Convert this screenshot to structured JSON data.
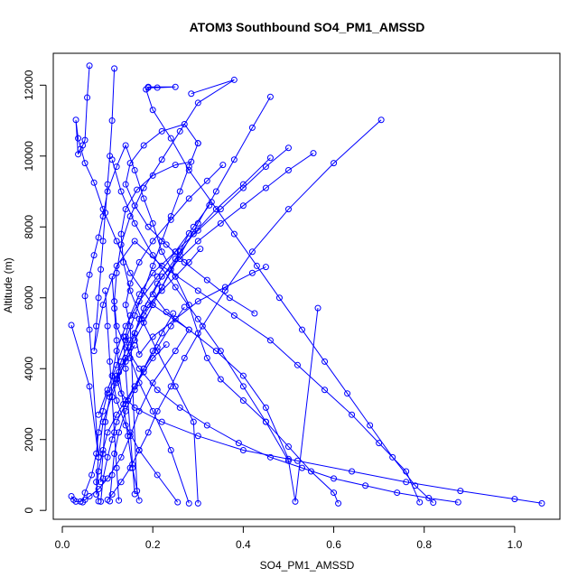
{
  "chart_data": {
    "type": "line",
    "title": "ATOM3 Southbound SO4_PM1_AMSSD",
    "xlabel": "SO4_PM1_AMSSD",
    "ylabel": "Altitude (m)",
    "xlim": [
      -0.02,
      1.1
    ],
    "ylim": [
      -250,
      12900
    ],
    "x_ticks": [
      "0.0",
      "0.2",
      "0.4",
      "0.6",
      "0.8",
      "1.0"
    ],
    "x_tick_values": [
      0.0,
      0.2,
      0.4,
      0.6,
      0.8,
      1.0
    ],
    "y_ticks": [
      "0",
      "2000",
      "4000",
      "6000",
      "8000",
      "10000",
      "12000"
    ],
    "y_tick_values": [
      0,
      2000,
      4000,
      6000,
      8000,
      10000,
      12000
    ],
    "grid": false,
    "color": "#0000ff",
    "series": [
      {
        "x": [
          0.06,
          0.055,
          0.05,
          0.045,
          0.04,
          0.035,
          0.03,
          0.035,
          0.05,
          0.07,
          0.09,
          0.12,
          0.15,
          0.2,
          0.28,
          0.25,
          0.2,
          0.17,
          0.15,
          0.13,
          0.1,
          0.08,
          0.06,
          0.05,
          0.04,
          0.03,
          0.025,
          0.02
        ],
        "y": [
          12550,
          11650,
          10450,
          10300,
          10200,
          10050,
          11020,
          10500,
          9800,
          9250,
          8500,
          7600,
          6700,
          5800,
          5100,
          4500,
          3600,
          2800,
          2100,
          1500,
          900,
          600,
          400,
          300,
          250,
          250,
          300,
          400
        ]
      },
      {
        "x": [
          0.02,
          0.06,
          0.08,
          0.06,
          0.05,
          0.06,
          0.07,
          0.08,
          0.09,
          0.1,
          0.12,
          0.14,
          0.16,
          0.18,
          0.2,
          0.22,
          0.25,
          0.28,
          0.3,
          0.32,
          0.35,
          0.4,
          0.45,
          0.5,
          0.55,
          0.6,
          0.61
        ],
        "y": [
          5230,
          3500,
          1500,
          5100,
          6050,
          6650,
          7200,
          7700,
          8300,
          9000,
          9700,
          10300,
          9600,
          8800,
          8100,
          7300,
          6600,
          5800,
          5000,
          4300,
          3700,
          3100,
          2500,
          1800,
          1100,
          500,
          200
        ]
      },
      {
        "x": [
          0.115,
          0.11,
          0.105,
          0.1,
          0.095,
          0.09,
          0.085,
          0.08,
          0.075,
          0.07,
          0.09,
          0.12,
          0.16,
          0.22,
          0.3,
          0.38,
          0.46,
          0.52,
          0.58,
          0.64,
          0.7,
          0.76,
          0.79
        ],
        "y": [
          12470,
          11000,
          10000,
          9200,
          8400,
          7600,
          6800,
          6000,
          5200,
          4500,
          5800,
          6900,
          7600,
          6900,
          6200,
          5500,
          4800,
          4100,
          3400,
          2700,
          1900,
          1100,
          230
        ]
      },
      {
        "x": [
          0.19,
          0.25,
          0.21,
          0.19,
          0.185,
          0.2,
          0.24,
          0.28,
          0.33,
          0.38,
          0.43,
          0.48,
          0.53,
          0.58,
          0.63,
          0.68,
          0.73,
          0.78,
          0.82
        ],
        "y": [
          11950,
          11950,
          11930,
          11930,
          11880,
          11300,
          10500,
          9600,
          8700,
          7800,
          6900,
          6000,
          5100,
          4200,
          3300,
          2400,
          1500,
          700,
          220
        ]
      },
      {
        "x": [
          0.285,
          0.38,
          0.3,
          0.26,
          0.22,
          0.18,
          0.15,
          0.13,
          0.12,
          0.115,
          0.12,
          0.14,
          0.17,
          0.21,
          0.26,
          0.32,
          0.39,
          0.46,
          0.53,
          0.6,
          0.67,
          0.74,
          0.81,
          0.875
        ],
        "y": [
          11760,
          12150,
          11500,
          10700,
          9900,
          9100,
          8300,
          7500,
          6700,
          5900,
          5200,
          4600,
          4000,
          3400,
          2900,
          2400,
          1900,
          1500,
          1200,
          900,
          700,
          500,
          350,
          230
        ]
      },
      {
        "x": [
          0.46,
          0.42,
          0.38,
          0.34,
          0.3,
          0.26,
          0.22,
          0.18,
          0.15,
          0.13,
          0.12,
          0.13,
          0.16,
          0.22,
          0.3,
          0.4,
          0.52,
          0.64,
          0.76,
          0.88,
          1.0,
          1.06
        ],
        "y": [
          11670,
          10800,
          9900,
          9000,
          8100,
          7200,
          6300,
          5500,
          4800,
          4200,
          3700,
          3300,
          2900,
          2500,
          2100,
          1700,
          1400,
          1100,
          800,
          550,
          320,
          200
        ]
      },
      {
        "x": [
          0.705,
          0.6,
          0.5,
          0.42,
          0.36,
          0.31,
          0.27,
          0.24,
          0.21,
          0.19,
          0.17,
          0.15,
          0.13,
          0.11,
          0.1
        ],
        "y": [
          11020,
          9800,
          8500,
          7300,
          6200,
          5200,
          4300,
          3500,
          2800,
          2200,
          1700,
          1200,
          800,
          450,
          300
        ]
      },
      {
        "x": [
          0.555,
          0.5,
          0.45,
          0.4,
          0.35,
          0.3,
          0.26,
          0.22,
          0.2,
          0.23,
          0.28,
          0.34,
          0.4,
          0.45,
          0.5
        ],
        "y": [
          10080,
          9600,
          9100,
          8600,
          8100,
          7600,
          7100,
          6600,
          6100,
          5600,
          5100,
          4500,
          3800,
          2900,
          1450
        ]
      },
      {
        "x": [
          0.5,
          0.45,
          0.4,
          0.35,
          0.3,
          0.25,
          0.2,
          0.17,
          0.15,
          0.14,
          0.15,
          0.17,
          0.2,
          0.24,
          0.28
        ],
        "y": [
          10230,
          9700,
          9100,
          8500,
          7900,
          7300,
          6700,
          6100,
          5500,
          4900,
          4300,
          3600,
          2800,
          1700,
          200
        ]
      },
      {
        "x": [
          0.46,
          0.4,
          0.34,
          0.29,
          0.25,
          0.21,
          0.18,
          0.16,
          0.17,
          0.2,
          0.25,
          0.3,
          0.36,
          0.42,
          0.45
        ],
        "y": [
          9950,
          9200,
          8500,
          7800,
          7100,
          6400,
          5700,
          5000,
          4400,
          4900,
          5400,
          5900,
          6300,
          6700,
          6870
        ]
      },
      {
        "x": [
          0.565,
          0.515,
          0.5,
          0.45,
          0.4,
          0.35,
          0.3,
          0.25,
          0.2,
          0.16,
          0.13,
          0.11
        ],
        "y": [
          5710,
          250,
          1400,
          2500,
          3500,
          4500,
          5400,
          6300,
          7200,
          8100,
          9000,
          9900
        ]
      },
      {
        "x": [
          0.425,
          0.37,
          0.32,
          0.27,
          0.23,
          0.19,
          0.16,
          0.14,
          0.15,
          0.18,
          0.22,
          0.27,
          0.3
        ],
        "y": [
          5560,
          6000,
          6500,
          7000,
          7500,
          8000,
          8600,
          9200,
          9800,
          10300,
          10700,
          10900,
          10360
        ]
      },
      {
        "x": [
          0.3,
          0.28,
          0.26,
          0.24,
          0.22,
          0.2,
          0.18,
          0.16,
          0.14,
          0.12,
          0.1,
          0.08
        ],
        "y": [
          10360,
          9700,
          9000,
          8300,
          7600,
          6900,
          6200,
          5500,
          4800,
          4100,
          3400,
          2700
        ]
      },
      {
        "x": [
          0.285,
          0.25,
          0.2,
          0.165,
          0.14,
          0.13,
          0.135,
          0.15,
          0.175,
          0.21,
          0.25,
          0.29,
          0.3
        ],
        "y": [
          9840,
          9750,
          9450,
          9050,
          8500,
          7800,
          7000,
          6200,
          5400,
          4500,
          3500,
          2500,
          200
        ]
      },
      {
        "x": [
          0.325,
          0.29,
          0.25,
          0.21,
          0.17,
          0.14,
          0.12,
          0.11,
          0.12,
          0.14,
          0.17,
          0.21,
          0.255
        ],
        "y": [
          8610,
          8000,
          7300,
          6600,
          5900,
          5200,
          4500,
          3800,
          3100,
          2400,
          1700,
          1000,
          230
        ]
      },
      {
        "x": [
          0.355,
          0.32,
          0.28,
          0.24,
          0.2,
          0.17,
          0.15,
          0.14,
          0.15,
          0.165
        ],
        "y": [
          9750,
          9300,
          8800,
          8200,
          7600,
          7000,
          6400,
          5800,
          5200,
          550
        ]
      },
      {
        "x": [
          0.305,
          0.28,
          0.25,
          0.22,
          0.19,
          0.17,
          0.16,
          0.15,
          0.12,
          0.09,
          0.08,
          0.075,
          0.08
        ],
        "y": [
          7380,
          7000,
          6600,
          6200,
          5800,
          5400,
          5000,
          4600,
          3600,
          2500,
          1500,
          800,
          260
        ]
      },
      {
        "x": [
          0.28,
          0.26,
          0.24,
          0.22,
          0.2,
          0.18,
          0.16,
          0.14,
          0.12,
          0.1,
          0.09,
          0.08,
          0.075,
          0.065,
          0.05,
          0.045
        ],
        "y": [
          7820,
          7300,
          6800,
          6300,
          5800,
          5300,
          4800,
          4300,
          3800,
          3300,
          2800,
          2200,
          1600,
          1000,
          500,
          230
        ]
      },
      {
        "x": [
          0.27,
          0.24,
          0.21,
          0.18,
          0.16,
          0.14,
          0.125,
          0.115,
          0.11,
          0.105
        ],
        "y": [
          5740,
          5200,
          4600,
          4000,
          3400,
          2800,
          2200,
          1600,
          1000,
          260
        ]
      },
      {
        "x": [
          0.245,
          0.22,
          0.2,
          0.18,
          0.16,
          0.14,
          0.12,
          0.11,
          0.1,
          0.09,
          0.085
        ],
        "y": [
          5560,
          5000,
          4500,
          4000,
          3500,
          3000,
          2500,
          2000,
          1500,
          900,
          250
        ]
      },
      {
        "x": [
          0.23,
          0.2,
          0.18,
          0.16,
          0.14,
          0.12,
          0.1,
          0.09,
          0.08,
          0.075
        ],
        "y": [
          4680,
          4300,
          3900,
          3500,
          3100,
          2700,
          2200,
          1700,
          1100,
          450
        ]
      },
      {
        "x": [
          0.16,
          0.14,
          0.12,
          0.105,
          0.095,
          0.09,
          0.085
        ],
        "y": [
          4660,
          4200,
          3700,
          3200,
          2500,
          1600,
          800
        ]
      },
      {
        "x": [
          0.17,
          0.155,
          0.145,
          0.135,
          0.125,
          0.12,
          0.115,
          0.11
        ],
        "y": [
          280,
          1200,
          2100,
          3000,
          3900,
          4800,
          5700,
          6600
        ]
      },
      {
        "x": [
          0.125,
          0.12,
          0.115,
          0.11,
          0.105,
          0.1,
          0.095
        ],
        "y": [
          280,
          1200,
          2200,
          3200,
          4200,
          5200,
          6200
        ]
      },
      {
        "x": [
          0.16,
          0.155,
          0.15,
          0.145,
          0.14,
          0.135
        ],
        "y": [
          460,
          1300,
          2200,
          3100,
          4000,
          4900
        ]
      }
    ]
  }
}
